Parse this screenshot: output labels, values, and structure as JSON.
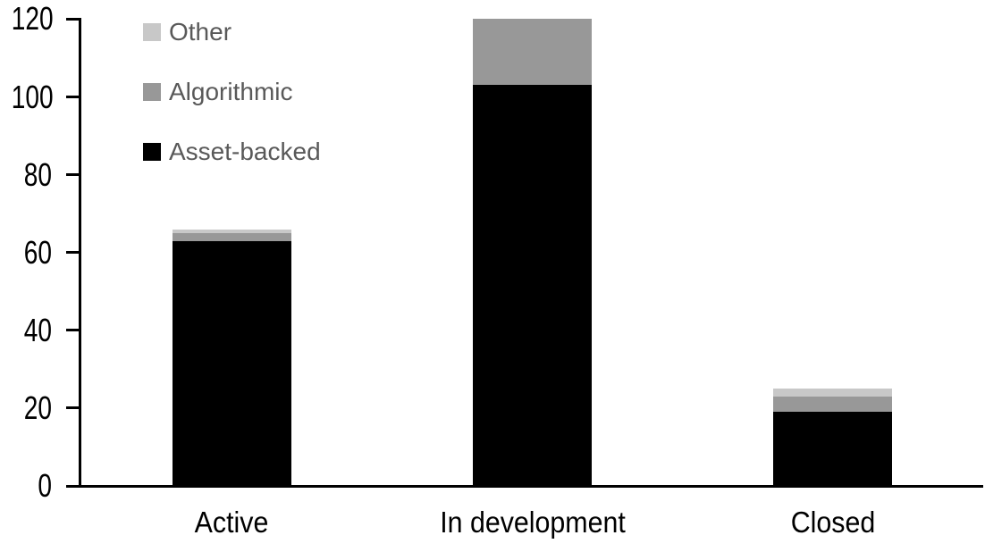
{
  "chart_data": {
    "type": "bar",
    "stacked": true,
    "title": "",
    "xlabel": "",
    "ylabel": "",
    "categories": [
      "Active",
      "In development",
      "Closed"
    ],
    "series": [
      {
        "name": "Asset-backed",
        "color": "#000000",
        "values": [
          63,
          103,
          19
        ]
      },
      {
        "name": "Algorithmic",
        "color": "#989898",
        "values": [
          2,
          17,
          4
        ]
      },
      {
        "name": "Other",
        "color": "#c8c8c8",
        "values": [
          1,
          0,
          2
        ]
      }
    ],
    "category_totals": [
      66,
      120,
      25
    ],
    "stack_order_bottom_to_top": [
      "Asset-backed",
      "Algorithmic",
      "Other"
    ],
    "legend_order_top_to_bottom": [
      "Other",
      "Algorithmic",
      "Asset-backed"
    ],
    "ylim": [
      0,
      120
    ],
    "yticks": [
      0,
      20,
      40,
      60,
      80,
      100,
      120
    ],
    "grid": false,
    "legend_position": "top-left",
    "colors": {
      "axis": "#000000",
      "tick_label": "#000000",
      "legend_text": "#595959",
      "background": "#ffffff"
    }
  }
}
